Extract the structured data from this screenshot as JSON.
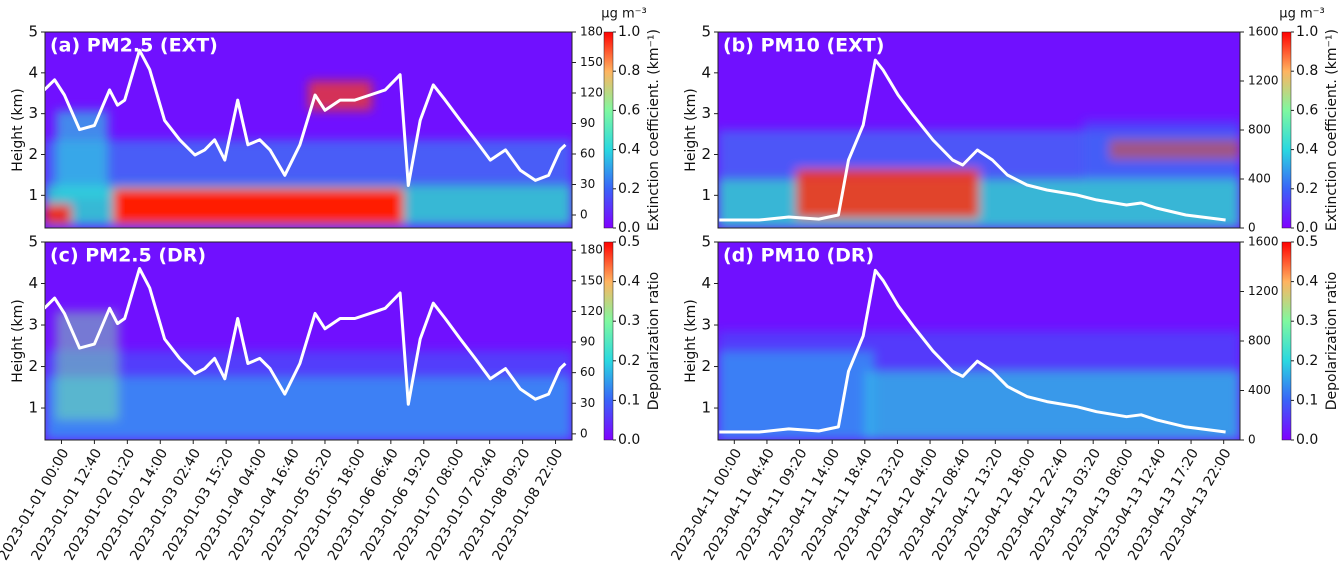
{
  "chart_data": [
    {
      "type": "line",
      "title": "(a) PM2.5 (EXT)",
      "ylabel": "Height (km)",
      "y2label": "µg m⁻³",
      "clabel": "Extinction coefficient. (km⁻¹)",
      "axis": "y2",
      "color": "#ffffff",
      "xlim": [
        -0.5,
        15.5
      ],
      "ylim": [
        0.2,
        5
      ],
      "yticks": [
        1,
        2,
        3,
        4,
        5
      ],
      "y2lim": [
        -12.8,
        180
      ],
      "y2ticks": [
        0,
        30,
        60,
        90,
        120,
        150,
        180
      ],
      "clim": [
        0,
        1
      ],
      "cticks": [
        {
          "value": 0,
          "label": "0.0"
        },
        {
          "value": 0.2,
          "label": "0.2"
        },
        {
          "value": 0.4,
          "label": "0.4"
        },
        {
          "value": 0.6,
          "label": "0.6"
        },
        {
          "value": 0.8,
          "label": "0.8"
        },
        {
          "value": 1,
          "label": "1.0"
        }
      ],
      "x": [
        -0.52,
        -0.21,
        0.09,
        0.55,
        1.0,
        1.46,
        1.7,
        1.92,
        2.37,
        2.68,
        3.13,
        3.59,
        4.05,
        4.35,
        4.65,
        4.96,
        5.35,
        5.66,
        6.02,
        6.33,
        6.78,
        7.24,
        7.7,
        8.0,
        8.46,
        8.91,
        9.37,
        9.83,
        10.28,
        10.53,
        10.89,
        11.29,
        11.65,
        12.11,
        12.56,
        13.02,
        13.48,
        13.93,
        14.39,
        14.79,
        15.14,
        15.3
      ],
      "values": [
        123,
        133,
        118,
        84,
        88,
        123,
        108,
        113,
        162,
        143,
        93,
        74,
        59,
        64,
        74,
        54,
        113,
        69,
        74,
        64,
        39,
        69,
        118,
        103,
        113,
        113,
        118,
        123,
        138,
        29,
        93,
        128,
        113,
        93,
        74,
        54,
        64,
        44,
        34,
        39,
        64,
        69
      ]
    },
    {
      "type": "line",
      "title": "(b) PM10 (EXT)",
      "ylabel": "Height (km)",
      "y2label": "µg m⁻³",
      "clabel": "Extinction coefficient. (km⁻¹)",
      "axis": "y2",
      "color": "#ffffff",
      "xlim": [
        -0.5,
        15.5
      ],
      "ylim": [
        0.2,
        5
      ],
      "yticks": [
        1,
        2,
        3,
        4,
        5
      ],
      "y2lim": [
        0,
        1600
      ],
      "y2ticks": [
        0,
        400,
        800,
        1200,
        1600
      ],
      "clim": [
        0,
        1
      ],
      "cticks": [
        {
          "value": 0,
          "label": "0.0"
        },
        {
          "value": 0.2,
          "label": "0.2"
        },
        {
          "value": 0.4,
          "label": "0.4"
        },
        {
          "value": 0.6,
          "label": "0.6"
        },
        {
          "value": 0.8,
          "label": "0.8"
        },
        {
          "value": 1,
          "label": "1.0"
        }
      ],
      "x": [
        -0.46,
        0.76,
        1.67,
        2.59,
        3.19,
        3.5,
        3.95,
        4.32,
        4.56,
        5.02,
        5.48,
        6.09,
        6.69,
        7.0,
        7.45,
        7.91,
        8.37,
        8.97,
        9.58,
        10.5,
        11.1,
        12.02,
        12.47,
        12.93,
        13.84,
        15.06
      ],
      "values": [
        65,
        65,
        90,
        73,
        106,
        555,
        841,
        1371,
        1290,
        1086,
        922,
        718,
        555,
        514,
        637,
        555,
        433,
        351,
        310,
        269,
        229,
        188,
        204,
        163,
        106,
        65
      ]
    },
    {
      "type": "line",
      "title": "(c) PM2.5 (DR)",
      "ylabel": "Height (km)",
      "clabel": "Depolarization ratio",
      "axis": "y2",
      "color": "#ffffff",
      "xlim": [
        -0.5,
        15.5
      ],
      "ylim": [
        0.23,
        5
      ],
      "yticks": [
        1,
        2,
        3,
        4,
        5
      ],
      "y2lim": [
        -6,
        188
      ],
      "y2ticks": [
        0,
        30,
        60,
        90,
        120,
        150,
        180
      ],
      "clim": [
        0,
        0.5
      ],
      "cticks": [
        {
          "value": 0,
          "label": "0.0"
        },
        0.1,
        0.2,
        0.3,
        0.4,
        0.5
      ],
      "xticks": [
        {
          "value": 0,
          "label": "2023-01-01 00:00"
        },
        {
          "value": 1,
          "label": "2023-01-01 12:40"
        },
        {
          "value": 2,
          "label": "2023-01-02 01:20"
        },
        {
          "value": 3,
          "label": "2023-01-02 14:00"
        },
        {
          "value": 4,
          "label": "2023-01-03 02:40"
        },
        {
          "value": 5,
          "label": "2023-01-03 15:20"
        },
        {
          "value": 6,
          "label": "2023-01-04 04:00"
        },
        {
          "value": 7,
          "label": "2023-01-04 16:40"
        },
        {
          "value": 8,
          "label": "2023-01-05 05:20"
        },
        {
          "value": 9,
          "label": "2023-01-05 18:00"
        },
        {
          "value": 10,
          "label": "2023-01-06 06:40"
        },
        {
          "value": 11,
          "label": "2023-01-06 19:20"
        },
        {
          "value": 12,
          "label": "2023-01-07 08:00"
        },
        {
          "value": 13,
          "label": "2023-01-07 20:40"
        },
        {
          "value": 14,
          "label": "2023-01-08 09:20"
        },
        {
          "value": 15,
          "label": "2023-01-08 22:00"
        }
      ],
      "x": [
        -0.52,
        -0.21,
        0.09,
        0.55,
        1.0,
        1.46,
        1.7,
        1.92,
        2.37,
        2.68,
        3.13,
        3.59,
        4.05,
        4.35,
        4.65,
        4.96,
        5.35,
        5.66,
        6.02,
        6.33,
        6.78,
        7.24,
        7.7,
        8.0,
        8.46,
        8.91,
        9.37,
        9.83,
        10.28,
        10.53,
        10.89,
        11.29,
        11.65,
        12.11,
        12.56,
        13.02,
        13.48,
        13.93,
        14.39,
        14.79,
        15.14,
        15.3
      ],
      "values": [
        123,
        133,
        118,
        84,
        88,
        123,
        108,
        113,
        162,
        143,
        93,
        74,
        59,
        64,
        74,
        54,
        113,
        69,
        74,
        64,
        39,
        69,
        118,
        103,
        113,
        113,
        118,
        123,
        138,
        29,
        93,
        128,
        113,
        93,
        74,
        54,
        64,
        44,
        34,
        39,
        64,
        69
      ]
    },
    {
      "type": "line",
      "title": "(d) PM10 (DR)",
      "ylabel": "Height (km)",
      "clabel": "Depolarization ratio",
      "axis": "y2",
      "color": "#ffffff",
      "xlim": [
        -0.5,
        15.5
      ],
      "ylim": [
        0.23,
        5
      ],
      "yticks": [
        1,
        2,
        3,
        4,
        5
      ],
      "y2lim": [
        0,
        1600
      ],
      "y2ticks": [
        0,
        400,
        800,
        1200,
        1600
      ],
      "clim": [
        0,
        0.5
      ],
      "cticks": [
        {
          "value": 0,
          "label": "0.0"
        },
        0.1,
        0.2,
        0.3,
        0.4,
        0.5
      ],
      "xticks": [
        {
          "value": 0,
          "label": "2023-04-11 00:00"
        },
        {
          "value": 1,
          "label": "2023-04-11 04:40"
        },
        {
          "value": 2,
          "label": "2023-04-11 09:20"
        },
        {
          "value": 3,
          "label": "2023-04-11 14:00"
        },
        {
          "value": 4,
          "label": "2023-04-11 18:40"
        },
        {
          "value": 5,
          "label": "2023-04-11 23:20"
        },
        {
          "value": 6,
          "label": "2023-04-12 04:00"
        },
        {
          "value": 7,
          "label": "2023-04-12 08:40"
        },
        {
          "value": 8,
          "label": "2023-04-12 13:20"
        },
        {
          "value": 9,
          "label": "2023-04-12 18:00"
        },
        {
          "value": 10,
          "label": "2023-04-12 22:40"
        },
        {
          "value": 11,
          "label": "2023-04-13 03:20"
        },
        {
          "value": 12,
          "label": "2023-04-13 08:00"
        },
        {
          "value": 13,
          "label": "2023-04-13 12:40"
        },
        {
          "value": 14,
          "label": "2023-04-13 17:20"
        },
        {
          "value": 15,
          "label": "2023-04-13 22:00"
        }
      ],
      "x": [
        -0.46,
        0.76,
        1.67,
        2.59,
        3.19,
        3.5,
        3.95,
        4.32,
        4.56,
        5.02,
        5.48,
        6.09,
        6.69,
        7.0,
        7.45,
        7.91,
        8.37,
        8.97,
        9.58,
        10.5,
        11.1,
        12.02,
        12.47,
        12.93,
        13.84,
        15.06
      ],
      "values": [
        65,
        65,
        90,
        73,
        106,
        555,
        841,
        1371,
        1290,
        1086,
        922,
        718,
        555,
        514,
        637,
        555,
        433,
        351,
        310,
        269,
        229,
        188,
        204,
        163,
        106,
        65
      ]
    }
  ]
}
